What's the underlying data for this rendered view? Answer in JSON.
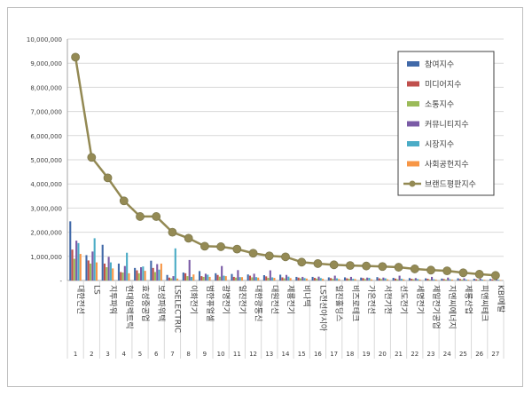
{
  "colors": {
    "participation": "#4169a8",
    "media": "#c0504d",
    "communication": "#9bbb59",
    "community": "#7a5ba6",
    "market": "#4bacc6",
    "social": "#f79646",
    "brand": "#938953",
    "brand_marker": "#948a54"
  },
  "chart_data": {
    "type": "bar",
    "title": "",
    "xlabel": "",
    "ylabel": "",
    "ylim": [
      0,
      10000000
    ],
    "yticks": [
      "-",
      "1,000,000",
      "2,000,000",
      "3,000,000",
      "4,000,000",
      "5,000,000",
      "6,000,000",
      "7,000,000",
      "8,000,000",
      "9,000,000",
      "10,000,000"
    ],
    "grid": true,
    "legend_position": "top-right",
    "ranks": [
      "1",
      "2",
      "3",
      "4",
      "5",
      "6",
      "7",
      "8",
      "9",
      "10",
      "11",
      "12",
      "13",
      "14",
      "15",
      "16",
      "17",
      "18",
      "19",
      "20",
      "21",
      "22",
      "23",
      "24",
      "25",
      "26",
      "27"
    ],
    "categories": [
      "대한전선",
      "LS",
      "지투파워",
      "현대일렉트릭",
      "효성중공업",
      "보성파워텍",
      "LSELECTRIC",
      "이화전기",
      "범한퓨얼셀",
      "광명전기",
      "일진전기",
      "대한광통신",
      "대원전선",
      "제룡전기",
      "비나텍",
      "LS전선아시아",
      "일진홀딩스",
      "비즈로테크",
      "가온전선",
      "서전기전",
      "선도전기",
      "세명전기",
      "제일전기공업",
      "지엔씨에너지",
      "제룡산업",
      "피앤씨테크",
      "KBI메탈"
    ],
    "series": [
      {
        "name": "참여지수",
        "key": "participation",
        "values": [
          2450000,
          1050000,
          1480000,
          700000,
          520000,
          820000,
          230000,
          330000,
          390000,
          300000,
          270000,
          250000,
          220000,
          240000,
          150000,
          150000,
          130000,
          130000,
          120000,
          140000,
          110000,
          100000,
          90000,
          80000,
          90000,
          70000,
          60000
        ]
      },
      {
        "name": "미디어지수",
        "key": "media",
        "values": [
          1280000,
          830000,
          700000,
          350000,
          420000,
          520000,
          120000,
          300000,
          180000,
          230000,
          150000,
          200000,
          170000,
          130000,
          120000,
          110000,
          100000,
          90000,
          100000,
          90000,
          80000,
          70000,
          70000,
          60000,
          60000,
          50000,
          50000
        ]
      },
      {
        "name": "소통지수",
        "key": "communication",
        "values": [
          900000,
          700000,
          550000,
          330000,
          300000,
          350000,
          90000,
          180000,
          150000,
          160000,
          120000,
          130000,
          110000,
          90000,
          90000,
          80000,
          70000,
          70000,
          60000,
          60000,
          50000,
          50000,
          40000,
          40000,
          40000,
          30000,
          30000
        ]
      },
      {
        "name": "커뮤니티지수",
        "key": "community",
        "values": [
          1650000,
          1200000,
          980000,
          600000,
          550000,
          680000,
          180000,
          850000,
          280000,
          600000,
          430000,
          280000,
          420000,
          230000,
          150000,
          160000,
          200000,
          150000,
          120000,
          120000,
          200000,
          100000,
          150000,
          120000,
          90000,
          80000,
          70000
        ]
      },
      {
        "name": "시장지수",
        "key": "market",
        "values": [
          1550000,
          1750000,
          750000,
          1150000,
          580000,
          450000,
          1330000,
          150000,
          240000,
          200000,
          140000,
          140000,
          130000,
          160000,
          100000,
          100000,
          90000,
          70000,
          110000,
          90000,
          70000,
          60000,
          50000,
          50000,
          40000,
          40000,
          30000
        ]
      },
      {
        "name": "사회공헌지수",
        "key": "social",
        "values": [
          1100000,
          750000,
          500000,
          300000,
          400000,
          700000,
          80000,
          250000,
          150000,
          180000,
          140000,
          120000,
          110000,
          100000,
          80000,
          70000,
          60000,
          60000,
          50000,
          50000,
          50000,
          40000,
          40000,
          40000,
          30000,
          30000,
          20000
        ]
      },
      {
        "name": "브랜드평판지수",
        "key": "brand",
        "values": [
          9250000,
          5100000,
          4250000,
          3300000,
          2650000,
          2650000,
          2000000,
          1750000,
          1420000,
          1400000,
          1300000,
          1130000,
          1020000,
          980000,
          760000,
          700000,
          650000,
          620000,
          600000,
          580000,
          550000,
          480000,
          430000,
          400000,
          320000,
          260000,
          210000
        ]
      }
    ]
  }
}
